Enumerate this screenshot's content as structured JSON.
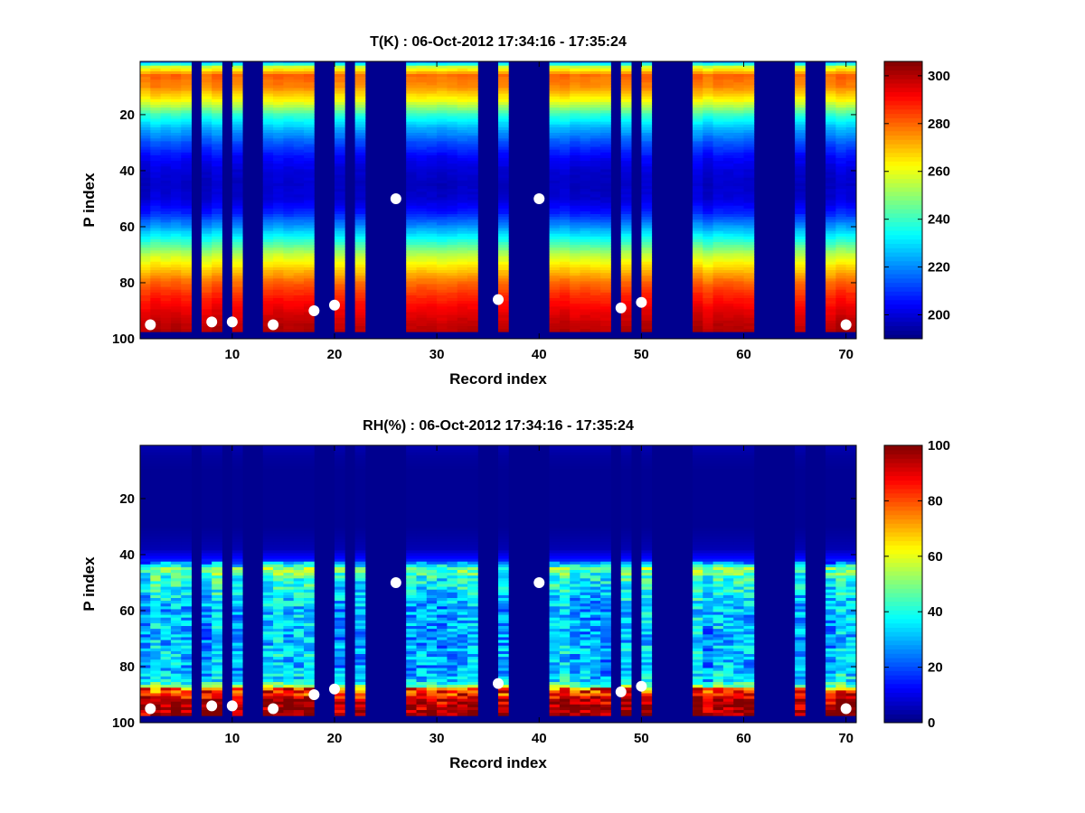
{
  "chart_data": [
    {
      "type": "heatmap",
      "title": "T(K) : 06-Oct-2012 17:34:16 - 17:35:24",
      "xlabel": "Record index",
      "ylabel": "P index",
      "xlim": [
        1,
        71
      ],
      "ylim": [
        100,
        1
      ],
      "x_ticks": [
        10,
        20,
        30,
        40,
        50,
        60,
        70
      ],
      "y_ticks": [
        20,
        40,
        60,
        80,
        100
      ],
      "colorbar": {
        "colormap": "jet",
        "range": [
          190,
          306
        ],
        "ticks": [
          200,
          220,
          240,
          260,
          280,
          300
        ]
      },
      "no_data_color": "#00008f",
      "profile_base_P": 97,
      "profile_top_P": 1,
      "valid_records": [
        1,
        2,
        3,
        4,
        5,
        7,
        8,
        10,
        13,
        14,
        15,
        16,
        17,
        20,
        22,
        27,
        28,
        29,
        30,
        31,
        32,
        33,
        36,
        41,
        42,
        43,
        44,
        45,
        46,
        48,
        50,
        55,
        56,
        57,
        58,
        59,
        60,
        65,
        68,
        69,
        70
      ],
      "temperature_profile": {
        "P": [
          1,
          3,
          6,
          10,
          15,
          20,
          25,
          30,
          35,
          40,
          45,
          50,
          55,
          60,
          65,
          70,
          75,
          80,
          85,
          90,
          95,
          97
        ],
        "T": [
          216,
          257,
          280,
          276,
          262,
          240,
          225,
          214,
          205,
          200,
          198,
          200,
          208,
          222,
          238,
          255,
          268,
          280,
          288,
          294,
          299,
          300
        ]
      },
      "markers": {
        "x": [
          2,
          8,
          10,
          14,
          18,
          20,
          26,
          36,
          40,
          48,
          50,
          70
        ],
        "y": [
          95,
          94,
          94,
          95,
          90,
          88,
          50,
          86,
          50,
          89,
          87,
          95
        ]
      }
    },
    {
      "type": "heatmap",
      "title": "RH(%) : 06-Oct-2012 17:34:16 - 17:35:24",
      "xlabel": "Record index",
      "ylabel": "P index",
      "xlim": [
        1,
        71
      ],
      "ylim": [
        100,
        1
      ],
      "x_ticks": [
        10,
        20,
        30,
        40,
        50,
        60,
        70
      ],
      "y_ticks": [
        20,
        40,
        60,
        80,
        100
      ],
      "colorbar": {
        "colormap": "jet",
        "range": [
          0,
          100
        ],
        "ticks": [
          0,
          20,
          40,
          60,
          80,
          100
        ]
      },
      "no_data_color": "#00008f",
      "profile_base_P": 97,
      "profile_top_P": 1,
      "valid_records": [
        1,
        2,
        3,
        4,
        5,
        7,
        8,
        10,
        13,
        14,
        15,
        16,
        17,
        20,
        22,
        27,
        28,
        29,
        30,
        31,
        32,
        33,
        36,
        41,
        42,
        43,
        44,
        45,
        46,
        48,
        50,
        55,
        56,
        57,
        58,
        59,
        60,
        65,
        68,
        69,
        70
      ],
      "humidity_profile": {
        "P": [
          1,
          5,
          10,
          20,
          30,
          38,
          42,
          45,
          48,
          55,
          60,
          65,
          70,
          75,
          80,
          85,
          88,
          92,
          97
        ],
        "RH": [
          5,
          3,
          2,
          2,
          2,
          5,
          15,
          50,
          42,
          35,
          30,
          32,
          28,
          33,
          30,
          35,
          60,
          95,
          98
        ]
      },
      "markers": {
        "x": [
          2,
          8,
          10,
          14,
          18,
          20,
          26,
          36,
          40,
          48,
          50,
          70
        ],
        "y": [
          95,
          94,
          94,
          95,
          90,
          88,
          50,
          86,
          50,
          89,
          87,
          95
        ]
      }
    }
  ]
}
